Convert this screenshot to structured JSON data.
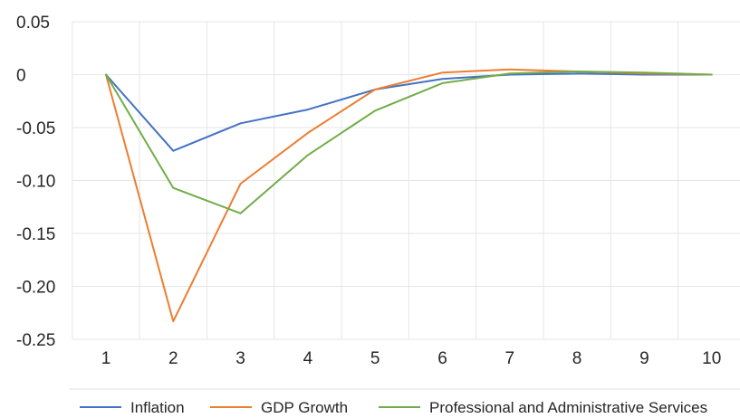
{
  "chart_data": {
    "type": "line",
    "title": "",
    "xlabel": "",
    "ylabel": "",
    "x": [
      1,
      2,
      3,
      4,
      5,
      6,
      7,
      8,
      9,
      10
    ],
    "ylim": [
      -0.25,
      0.05
    ],
    "yticks": [
      0.05,
      0,
      -0.05,
      -0.1,
      -0.15,
      -0.2,
      -0.25
    ],
    "ytick_labels": [
      "0.05",
      "0",
      "-0.05",
      "-0.10",
      "-0.15",
      "-0.20",
      "-0.25"
    ],
    "xtick_labels": [
      "1",
      "2",
      "3",
      "4",
      "5",
      "6",
      "7",
      "8",
      "9",
      "10"
    ],
    "grid": "vertical and horizontal, light gray",
    "legend_position": "bottom",
    "series": [
      {
        "name": "Inflation",
        "color": "#4472C4",
        "values": [
          0,
          -0.072,
          -0.046,
          -0.033,
          -0.014,
          -0.004,
          0.0,
          0.001,
          0.0,
          0.0
        ]
      },
      {
        "name": "GDP Growth",
        "color": "#ED7D31",
        "values": [
          0,
          -0.233,
          -0.103,
          -0.055,
          -0.014,
          0.002,
          0.005,
          0.003,
          0.001,
          0.0
        ]
      },
      {
        "name": "Professional and Administrative Services",
        "color": "#70AD47",
        "values": [
          0,
          -0.107,
          -0.131,
          -0.076,
          -0.034,
          -0.008,
          0.001,
          0.003,
          0.002,
          0.0
        ]
      }
    ]
  }
}
